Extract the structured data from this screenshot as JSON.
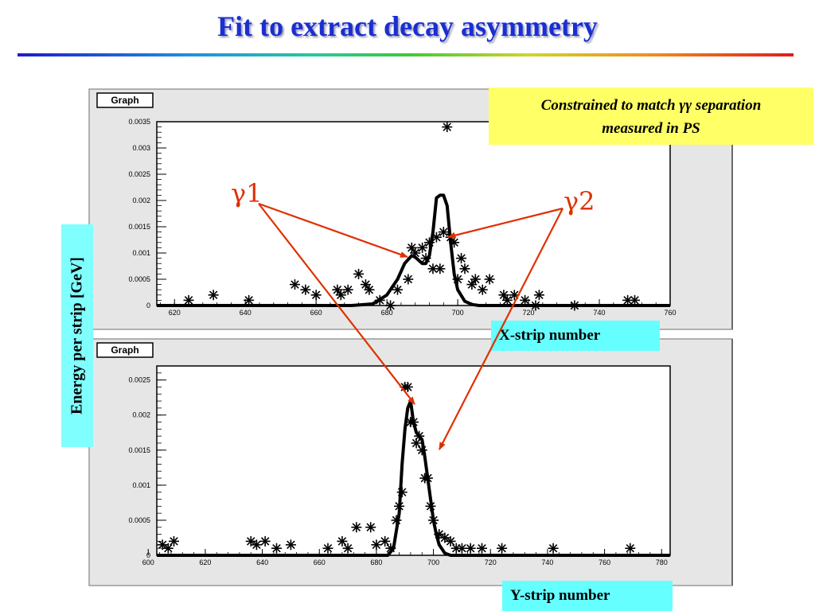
{
  "slide": {
    "title": "Fit to extract decay asymmetry",
    "y_axis_caption": "Energy per strip [GeV]",
    "note_line1": "Constrained to match γγ separation",
    "note_line2": "measured in PS",
    "gamma1_label": "γ1",
    "gamma2_label": "γ2",
    "x_caption": "X-strip number",
    "y_caption": "Y-strip number"
  },
  "colors": {
    "title": "#1a2fd0",
    "arrow": "#e03000",
    "note_bg": "#ffff66",
    "caption_bg": "#66ffff",
    "ylabel_bg": "#80ffff"
  },
  "chart_data": [
    {
      "type": "scatter",
      "frame_label": "Graph",
      "xlim": [
        615,
        760
      ],
      "ylim": [
        0,
        0.0035
      ],
      "xticks": [
        "620",
        "640",
        "660",
        "680",
        "700",
        "720",
        "740",
        "760"
      ],
      "yticks": [
        "0",
        "0.0005",
        "0.001",
        "0.0015",
        "0.002",
        "0.0025",
        "0.003",
        "0.0035"
      ],
      "points": {
        "x": [
          624,
          631,
          641,
          654,
          657,
          660,
          666,
          667,
          669,
          672,
          674,
          675,
          678,
          681,
          683,
          686,
          687,
          688,
          690,
          691,
          692,
          693,
          694,
          695,
          696,
          697,
          698,
          699,
          700,
          701,
          702,
          704,
          705,
          707,
          709,
          713,
          714,
          716,
          719,
          722,
          723,
          733,
          748,
          750
        ],
        "y": [
          0.0001,
          0.0002,
          0.0001,
          0.0004,
          0.0003,
          0.0002,
          0.0003,
          0.0002,
          0.0003,
          0.0006,
          0.0004,
          0.0003,
          0.0001,
          0.0,
          0.0003,
          0.0005,
          0.0011,
          0.001,
          0.0011,
          0.0009,
          0.0012,
          0.0007,
          0.0013,
          0.0007,
          0.0014,
          0.0034,
          0.0013,
          0.0012,
          0.0005,
          0.0009,
          0.0007,
          0.0004,
          0.0005,
          0.0003,
          0.0005,
          0.0002,
          0.0001,
          0.0002,
          0.0001,
          0.0,
          0.0002,
          0.0,
          0.0001,
          0.0001
        ]
      },
      "fit_curve": {
        "x": [
          615,
          670,
          676,
          680,
          683,
          685,
          687,
          688,
          690,
          691,
          692,
          693,
          694,
          695,
          696,
          697,
          698,
          699,
          700,
          702,
          704,
          706,
          760
        ],
        "y": [
          0,
          0,
          3e-05,
          0.0002,
          0.0005,
          0.0008,
          0.00095,
          0.00092,
          0.0008,
          0.0008,
          0.00095,
          0.0014,
          0.00205,
          0.0021,
          0.0021,
          0.0019,
          0.0012,
          0.0006,
          0.0003,
          8e-05,
          2e-05,
          0,
          0
        ]
      }
    },
    {
      "type": "scatter",
      "frame_label": "Graph",
      "xlim": [
        603,
        783
      ],
      "ylim": [
        0,
        0.0027
      ],
      "xticks": [
        "600",
        "620",
        "640",
        "660",
        "680",
        "700",
        "720",
        "740",
        "760",
        "780"
      ],
      "yticks": [
        "0",
        "0.0005",
        "0.001",
        "0.0015",
        "0.002",
        "0.0025"
      ],
      "points": {
        "x": [
          605,
          607,
          609,
          636,
          638,
          641,
          645,
          650,
          663,
          668,
          670,
          673,
          678,
          680,
          683,
          685,
          687,
          688,
          689,
          690,
          691,
          692,
          693,
          694,
          695,
          696,
          697,
          698,
          699,
          700,
          702,
          704,
          706,
          708,
          710,
          713,
          717,
          724,
          742,
          769
        ],
        "y": [
          0.00015,
          0.0001,
          0.0002,
          0.0002,
          0.00015,
          0.0002,
          0.0001,
          0.00015,
          0.0001,
          0.0002,
          0.0001,
          0.0004,
          0.0004,
          0.00015,
          0.0002,
          0.0001,
          0.0005,
          0.0007,
          0.0009,
          0.0024,
          0.0024,
          0.0019,
          0.0019,
          0.0016,
          0.0017,
          0.0015,
          0.0011,
          0.0011,
          0.0007,
          0.0005,
          0.0003,
          0.00025,
          0.0002,
          0.0001,
          0.0001,
          0.0001,
          0.0001,
          0.0001,
          0.0001,
          0.0001
        ]
      },
      "fit_curve": {
        "x": [
          603,
          684,
          686,
          688,
          689,
          690,
          691,
          692,
          693,
          694,
          695,
          696,
          697,
          698,
          699,
          700,
          701,
          702,
          704,
          706,
          783
        ],
        "y": [
          0,
          0,
          0.0001,
          0.0006,
          0.0013,
          0.0018,
          0.0021,
          0.0022,
          0.0019,
          0.00175,
          0.0017,
          0.00165,
          0.0014,
          0.0011,
          0.0008,
          0.0005,
          0.0003,
          0.00015,
          3e-05,
          0,
          0
        ]
      }
    }
  ]
}
